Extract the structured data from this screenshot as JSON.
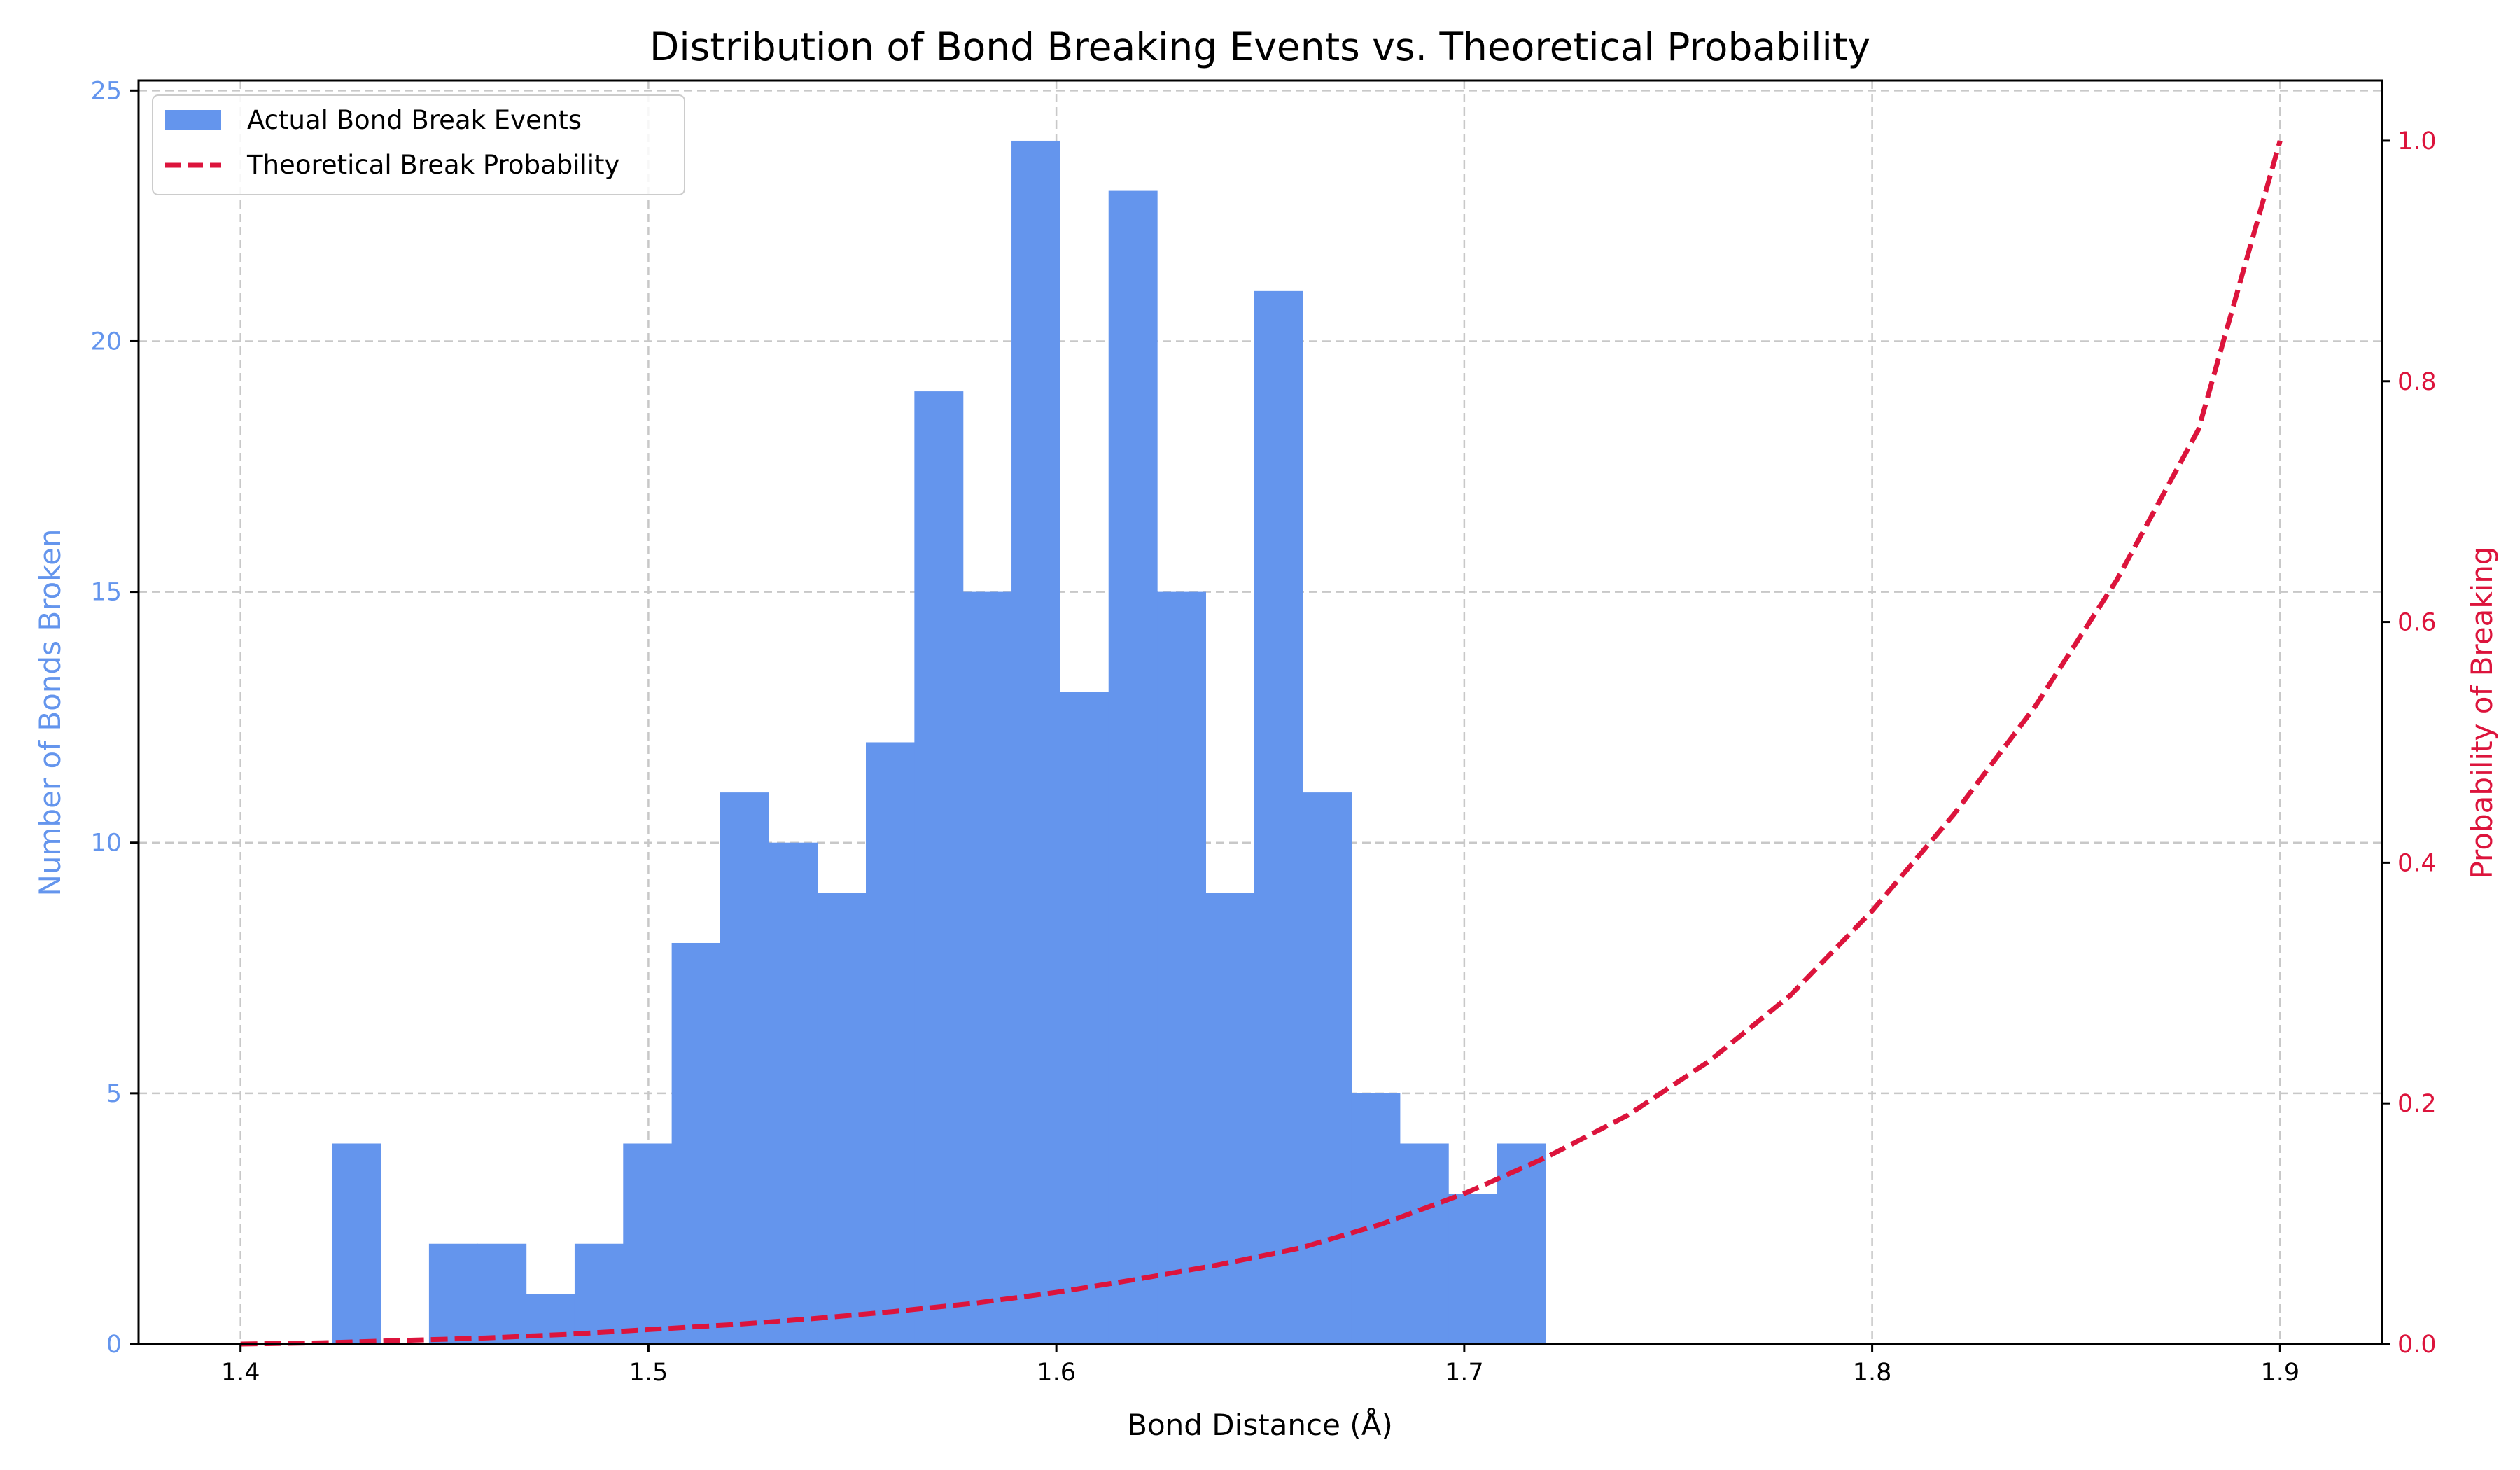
{
  "chart_data": {
    "type": "bar+line",
    "title": "Distribution of Bond Breaking Events vs. Theoretical Probability",
    "xlabel": "Bond Distance (Å)",
    "ylabel_left": "Number of Bonds Broken",
    "ylabel_right": "Probability of Breaking",
    "xlim": [
      1.375,
      1.925
    ],
    "ylim_left": [
      0,
      25.2
    ],
    "ylim_right": [
      0,
      1.05
    ],
    "x_ticks": [
      "1.4",
      "1.5",
      "1.6",
      "1.7",
      "1.8",
      "1.9"
    ],
    "y_left_ticks": [
      "0",
      "5",
      "10",
      "15",
      "20",
      "25"
    ],
    "y_right_ticks": [
      "0.0",
      "0.2",
      "0.4",
      "0.6",
      "0.8",
      "1.0"
    ],
    "grid": true,
    "legend_position": "top-left",
    "colors": {
      "histogram": "#6495ED",
      "theory": "#DC143C"
    },
    "histogram": {
      "name": "Actual Bond Break Events",
      "bin_edges": [
        1.4224,
        1.4343,
        1.4462,
        1.4581,
        1.47,
        1.4819,
        1.4938,
        1.5057,
        1.5176,
        1.5295,
        1.5414,
        1.5533,
        1.5652,
        1.5771,
        1.589,
        1.6009,
        1.6128,
        1.6247,
        1.6366,
        1.6485,
        1.6604,
        1.6723,
        1.6842,
        1.6961,
        1.708,
        1.7199
      ],
      "counts": [
        4,
        0,
        2,
        2,
        1,
        2,
        4,
        8,
        11,
        10,
        9,
        12,
        19,
        15,
        24,
        13,
        23,
        15,
        9,
        21,
        11,
        5,
        4,
        3,
        4
      ]
    },
    "theory": {
      "name": "Theoretical Break Probability",
      "x": [
        1.4,
        1.42,
        1.44,
        1.46,
        1.48,
        1.5,
        1.52,
        1.54,
        1.56,
        1.58,
        1.6,
        1.62,
        1.64,
        1.66,
        1.68,
        1.7,
        1.72,
        1.74,
        1.76,
        1.78,
        1.8,
        1.82,
        1.84,
        1.86,
        1.88,
        1.9
      ],
      "y": [
        0.0,
        0.001,
        0.003,
        0.005,
        0.008,
        0.012,
        0.016,
        0.021,
        0.027,
        0.034,
        0.043,
        0.054,
        0.066,
        0.08,
        0.1,
        0.125,
        0.155,
        0.19,
        0.235,
        0.29,
        0.36,
        0.44,
        0.53,
        0.635,
        0.76,
        1.0
      ]
    }
  }
}
